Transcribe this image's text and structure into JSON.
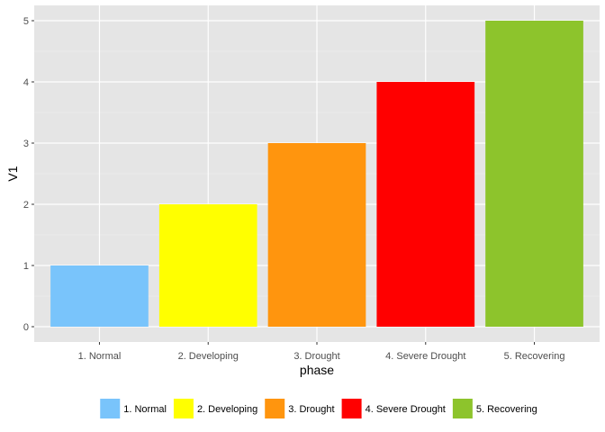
{
  "chart_data": {
    "type": "bar",
    "categories": [
      "1. Normal",
      "2. Developing",
      "3. Drought",
      "4. Severe Drought",
      "5. Recovering"
    ],
    "values": [
      1,
      2,
      3,
      4,
      5
    ],
    "colors": [
      "#79C4FB",
      "#FFFF00",
      "#FF950E",
      "#FF0000",
      "#8DC42C"
    ],
    "xlabel": "phase",
    "ylabel": "V1",
    "ylim": [
      -0.25,
      5.25
    ],
    "yticks": [
      0,
      1,
      2,
      3,
      4,
      5
    ],
    "grid": true,
    "panel_background": "#E5E5E5",
    "legend": {
      "position": "bottom",
      "entries": [
        "1. Normal",
        "2. Developing",
        "3. Drought",
        "4. Severe Drought",
        "5. Recovering"
      ]
    }
  }
}
